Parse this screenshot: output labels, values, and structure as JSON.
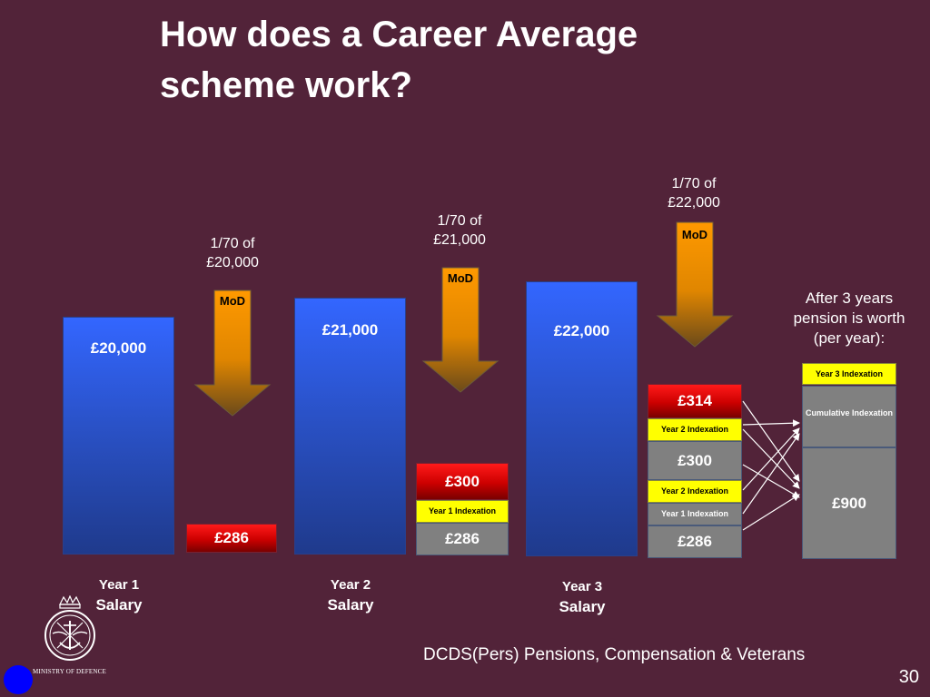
{
  "title": {
    "line1": "How does a Career Average",
    "line2": "scheme work?"
  },
  "salaries": [
    {
      "year": "Year 1",
      "label": "Salary",
      "amount": "£20,000"
    },
    {
      "year": "Year 2",
      "label": "Salary",
      "amount": "£21,000"
    },
    {
      "year": "Year 3",
      "label": "Salary",
      "amount": "£22,000"
    }
  ],
  "contributions": [
    {
      "caption_line1": "1/70 of",
      "caption_line2": "£20,000",
      "arrow_label": "MoD"
    },
    {
      "caption_line1": "1/70 of",
      "caption_line2": "£21,000",
      "arrow_label": "MoD"
    },
    {
      "caption_line1": "1/70 of",
      "caption_line2": "£22,000",
      "arrow_label": "MoD"
    }
  ],
  "stack1": {
    "accrual": "£286"
  },
  "stack2": {
    "accrual": "£300",
    "indexation": "Year 1 Indexation",
    "base": "£286"
  },
  "stack3": {
    "accrual": "£314",
    "year2_index_top": "Year 2 Indexation",
    "middle": "£300",
    "year2_index_bottom": "Year 2 Indexation",
    "year1_index": "Year 1 Indexation",
    "base": "£286"
  },
  "summary": {
    "caption_line1": "After 3 years",
    "caption_line2": "pension is worth",
    "caption_line3": "(per year):",
    "year3_index": "Year 3 Indexation",
    "cumulative_index": "Cumulative Indexation",
    "total": "£900"
  },
  "footer": {
    "organisation": "DCDS(Pers) Pensions, Compensation & Veterans",
    "page_number": "30",
    "logo_text": "MINISTRY OF DEFENCE"
  },
  "colors": {
    "background": "#522339",
    "salary_bar": "#3366ff",
    "accrual_red": "#cc0000",
    "indexation_yellow": "#ffff00",
    "base_grey": "#808080",
    "arrow_orange": "#ff9900"
  }
}
